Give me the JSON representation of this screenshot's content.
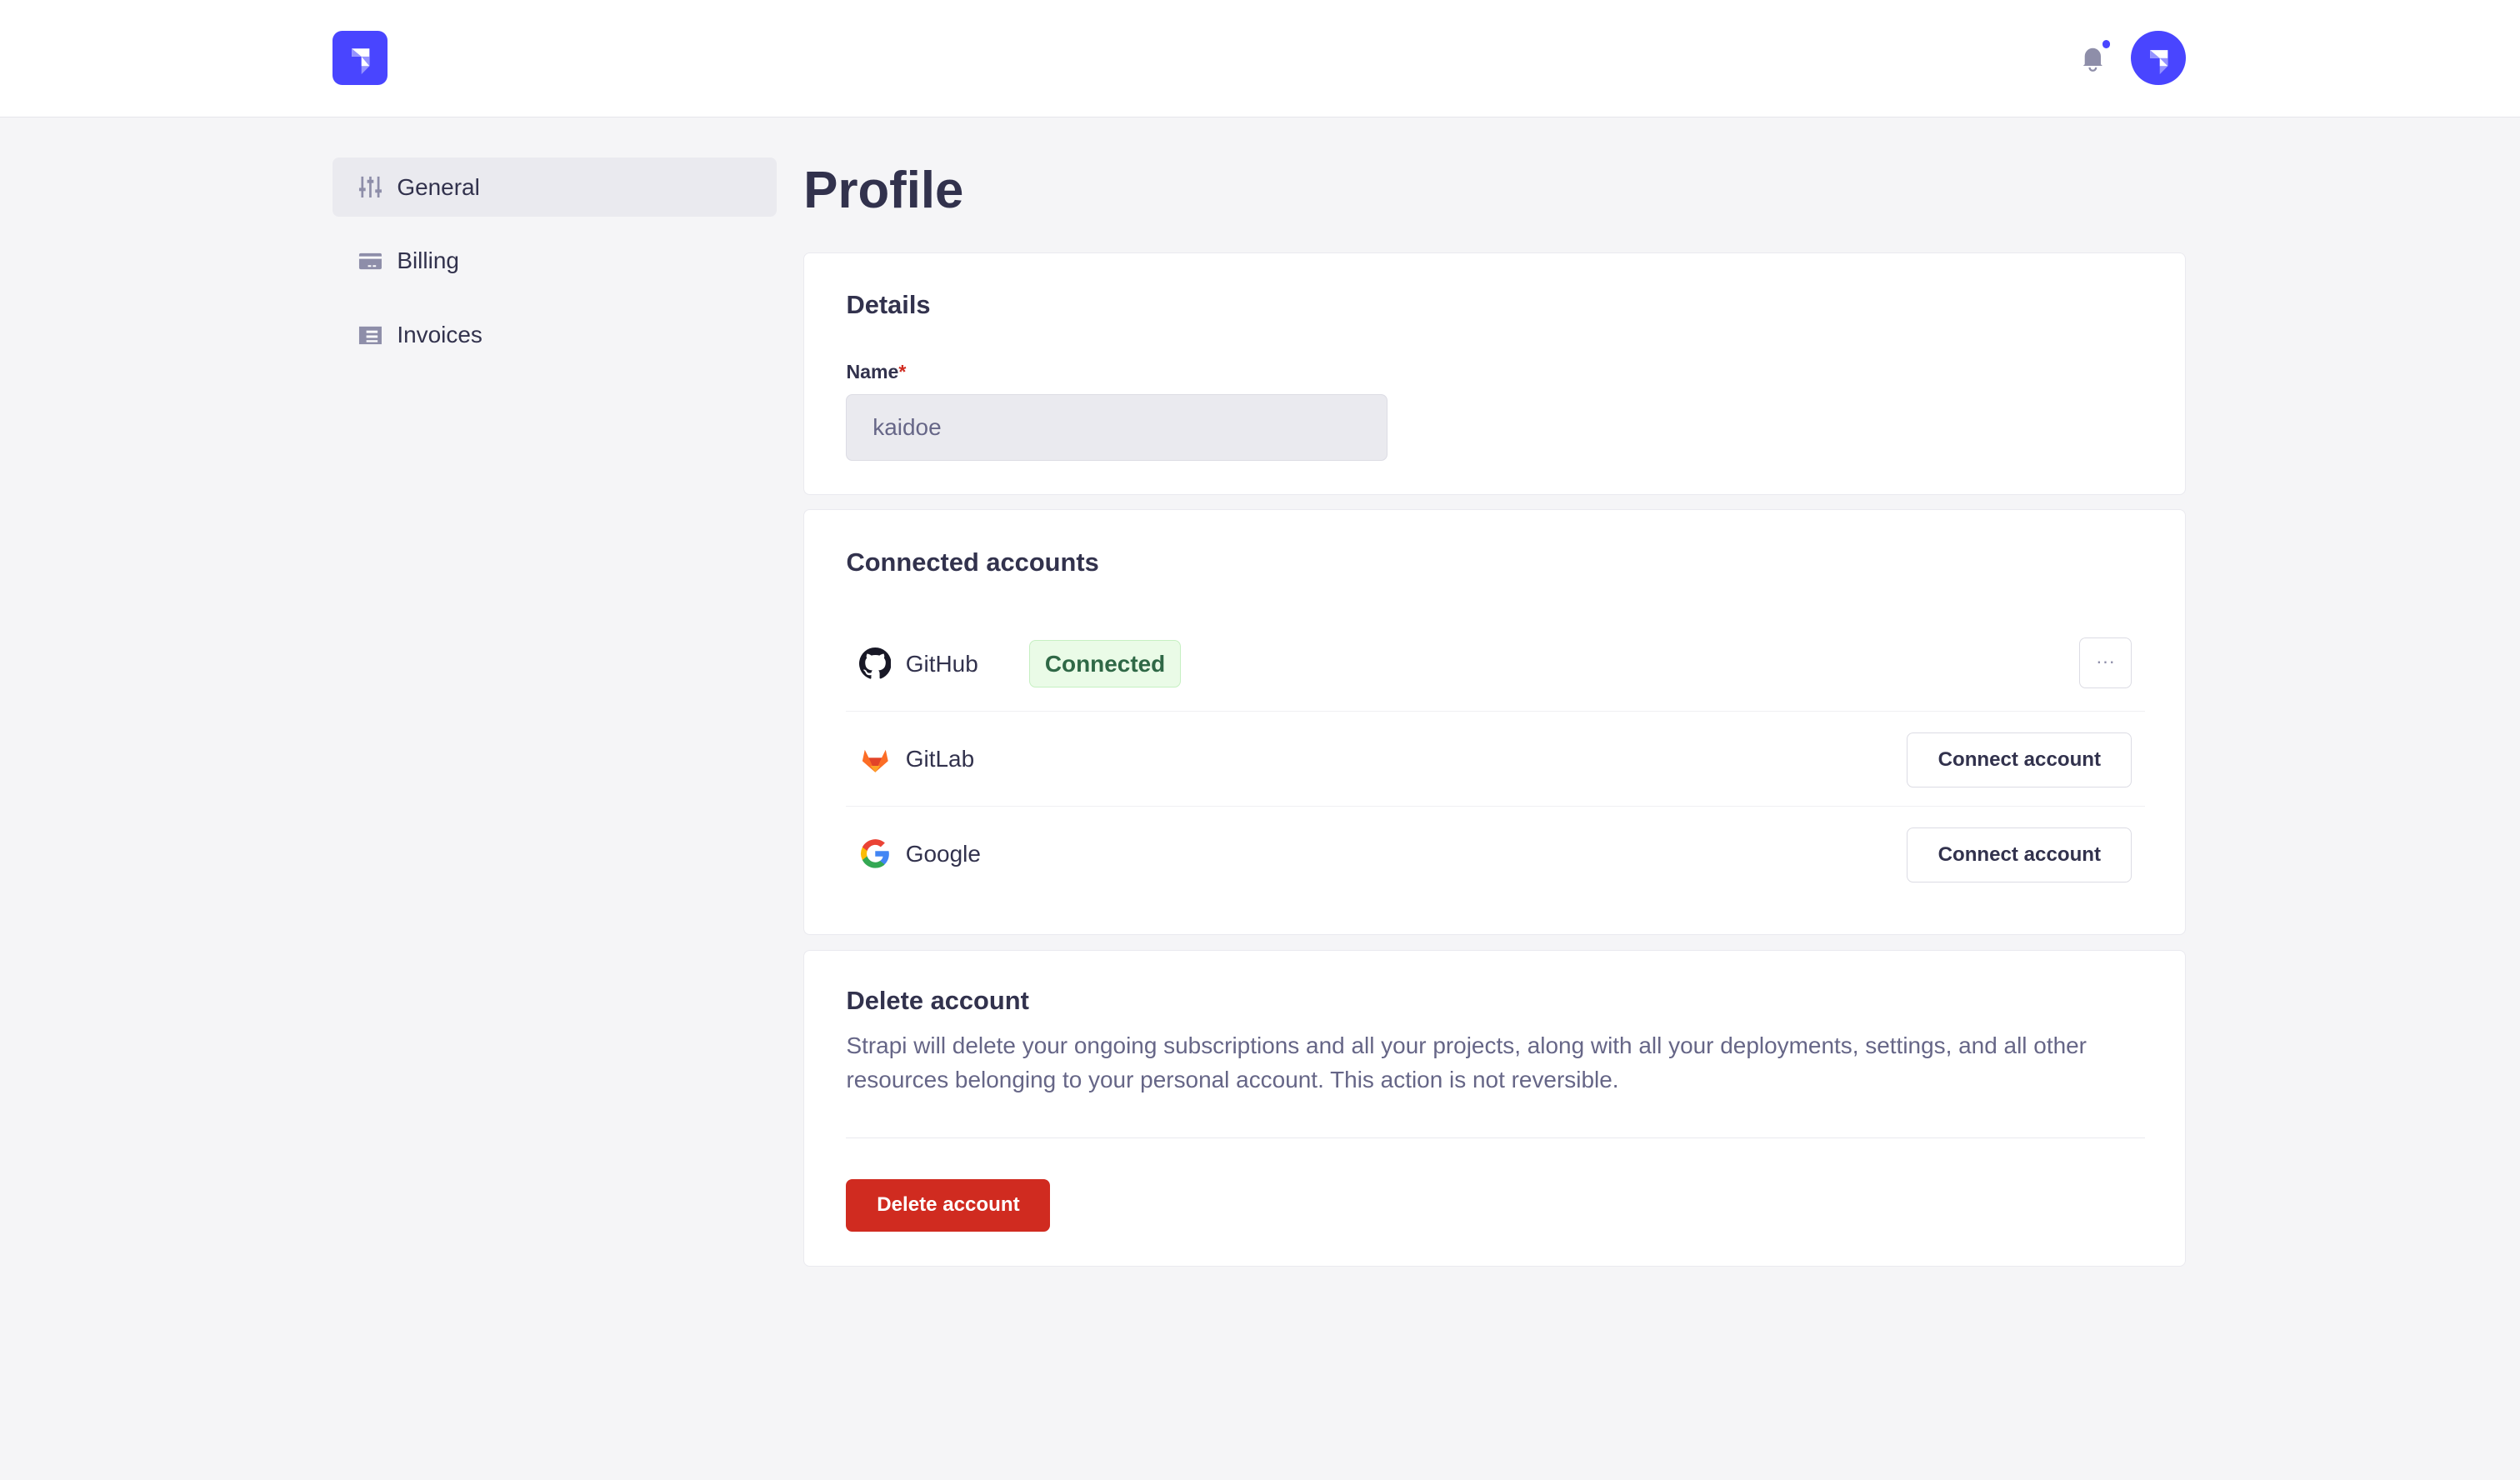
{
  "header": {
    "brand_color": "#4945ff",
    "notification_dot": true
  },
  "sidebar": {
    "items": [
      {
        "label": "General",
        "icon": "sliders-icon",
        "active": true
      },
      {
        "label": "Billing",
        "icon": "credit-card-icon"
      },
      {
        "label": "Invoices",
        "icon": "invoice-icon"
      }
    ]
  },
  "page": {
    "title": "Profile"
  },
  "details": {
    "heading": "Details",
    "name_label": "Name",
    "required_mark": "*",
    "name_value": "kaidoe"
  },
  "connected": {
    "heading": "Connected accounts",
    "accounts": [
      {
        "name": "GitHub",
        "status": "Connected",
        "more": "···"
      },
      {
        "name": "GitLab",
        "action": "Connect account"
      },
      {
        "name": "Google",
        "action": "Connect account"
      }
    ]
  },
  "delete": {
    "heading": "Delete account",
    "description": "Strapi will delete your ongoing subscriptions and all your projects, along with all your deployments, settings, and all other resources belonging to your personal account. This action is not reversible.",
    "button": "Delete account",
    "danger_color": "#d02b20"
  }
}
